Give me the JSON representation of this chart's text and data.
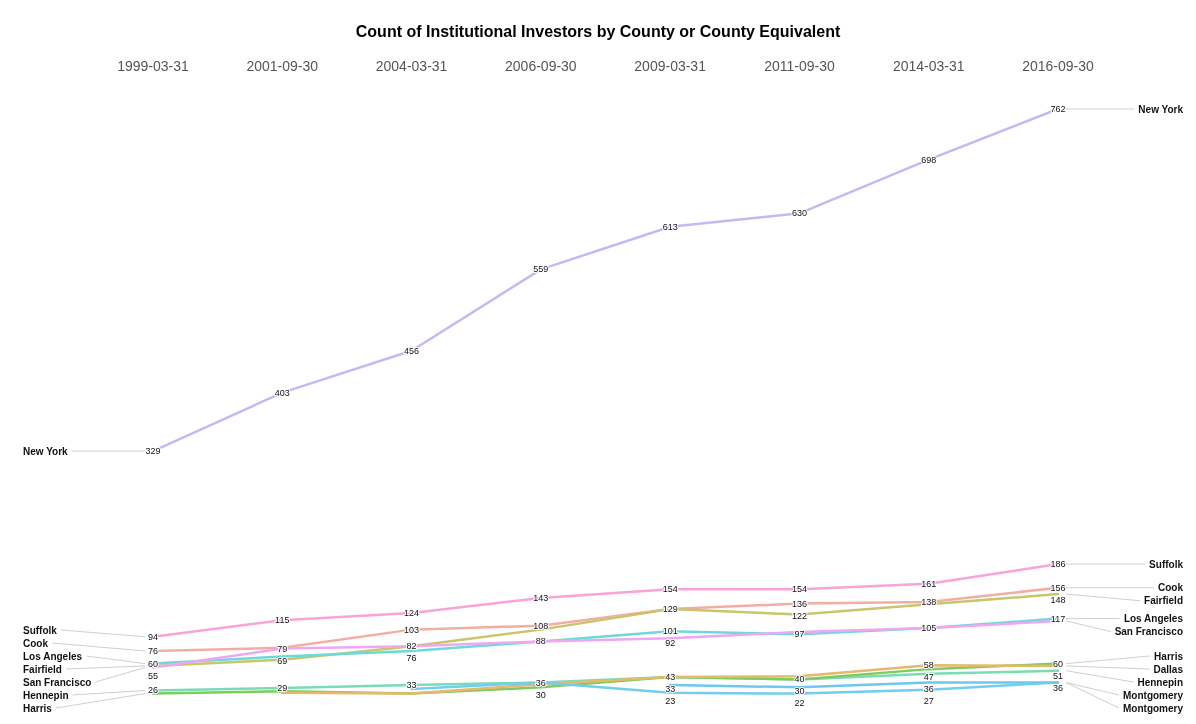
{
  "chart_data": {
    "type": "line",
    "title": "Count of Institutional Investors by County or County Equivalent",
    "categories": [
      "1999-03-31",
      "2001-09-30",
      "2004-03-31",
      "2006-09-30",
      "2009-03-31",
      "2011-09-30",
      "2014-03-31",
      "2016-09-30"
    ],
    "legend": false,
    "grid": false,
    "series": [
      {
        "name": "New York",
        "color": "#c5b9f5",
        "values": [
          329,
          403,
          456,
          559,
          613,
          630,
          698,
          762
        ],
        "value_labels": [
          "329",
          "403",
          "456",
          "559",
          "613",
          "630",
          "698",
          "762"
        ]
      },
      {
        "name": "Suffolk",
        "color": "#f9a3d8",
        "values": [
          94,
          115,
          124,
          143,
          154,
          154,
          161,
          186
        ],
        "value_labels": [
          "94",
          "115",
          "124",
          "143",
          "154",
          "154",
          "161",
          "186"
        ]
      },
      {
        "name": "Cook",
        "color": "#f4ada3",
        "values": [
          76,
          80,
          103,
          108,
          129,
          136,
          138,
          156
        ],
        "value_labels": [
          "76",
          null,
          "103",
          "108",
          "129",
          "136",
          "138",
          "156"
        ]
      },
      {
        "name": "Fairfield",
        "color": "#c8c66a",
        "values": [
          57,
          65,
          82,
          103,
          129,
          122,
          135,
          148
        ],
        "value_labels": [
          null,
          null,
          null,
          null,
          null,
          "122",
          null,
          "148"
        ]
      },
      {
        "name": "Los Angeles",
        "color": "#6dd9d9",
        "values": [
          60,
          69,
          76,
          88,
          101,
          97,
          105,
          117
        ],
        "value_labels": [
          "60",
          "69",
          "76",
          "88",
          "101",
          "97",
          "105",
          "117"
        ]
      },
      {
        "name": "San Francisco",
        "color": "#eea6f5",
        "values": [
          55,
          79,
          82,
          88,
          92,
          100,
          105,
          114
        ],
        "value_labels": [
          "55",
          "79",
          "82",
          null,
          "92",
          null,
          null,
          null
        ]
      },
      {
        "name": "Hennepin",
        "color": "#79dcb5",
        "values": [
          26,
          29,
          33,
          36,
          43,
          40,
          47,
          51
        ],
        "value_labels": [
          "26",
          "29",
          "33",
          "36",
          null,
          null,
          "47",
          "51"
        ]
      },
      {
        "name": "Harris",
        "color": "#7ccd5f",
        "values": [
          22,
          25,
          22,
          30,
          43,
          40,
          53,
          60
        ],
        "value_labels": [
          null,
          null,
          null,
          "30",
          "43",
          "40",
          null,
          "60"
        ]
      },
      {
        "name": "Dallas",
        "color": "#e6b86a",
        "values": [
          null,
          23,
          22,
          34,
          43,
          44,
          58,
          57
        ],
        "value_labels": [
          null,
          null,
          null,
          null,
          null,
          null,
          "58",
          null
        ]
      },
      {
        "name": "Montgomery",
        "color": "#73cdf0",
        "values": [
          null,
          null,
          28,
          36,
          23,
          22,
          27,
          36
        ],
        "value_labels": [
          null,
          null,
          null,
          null,
          "23",
          "22",
          "27",
          "36"
        ]
      },
      {
        "name": "Montgomery",
        "color": "#6ec8ee",
        "values": [
          null,
          null,
          null,
          null,
          33,
          30,
          36,
          36
        ],
        "value_labels": [
          null,
          null,
          null,
          null,
          "33",
          "30",
          "36",
          null
        ]
      }
    ]
  }
}
